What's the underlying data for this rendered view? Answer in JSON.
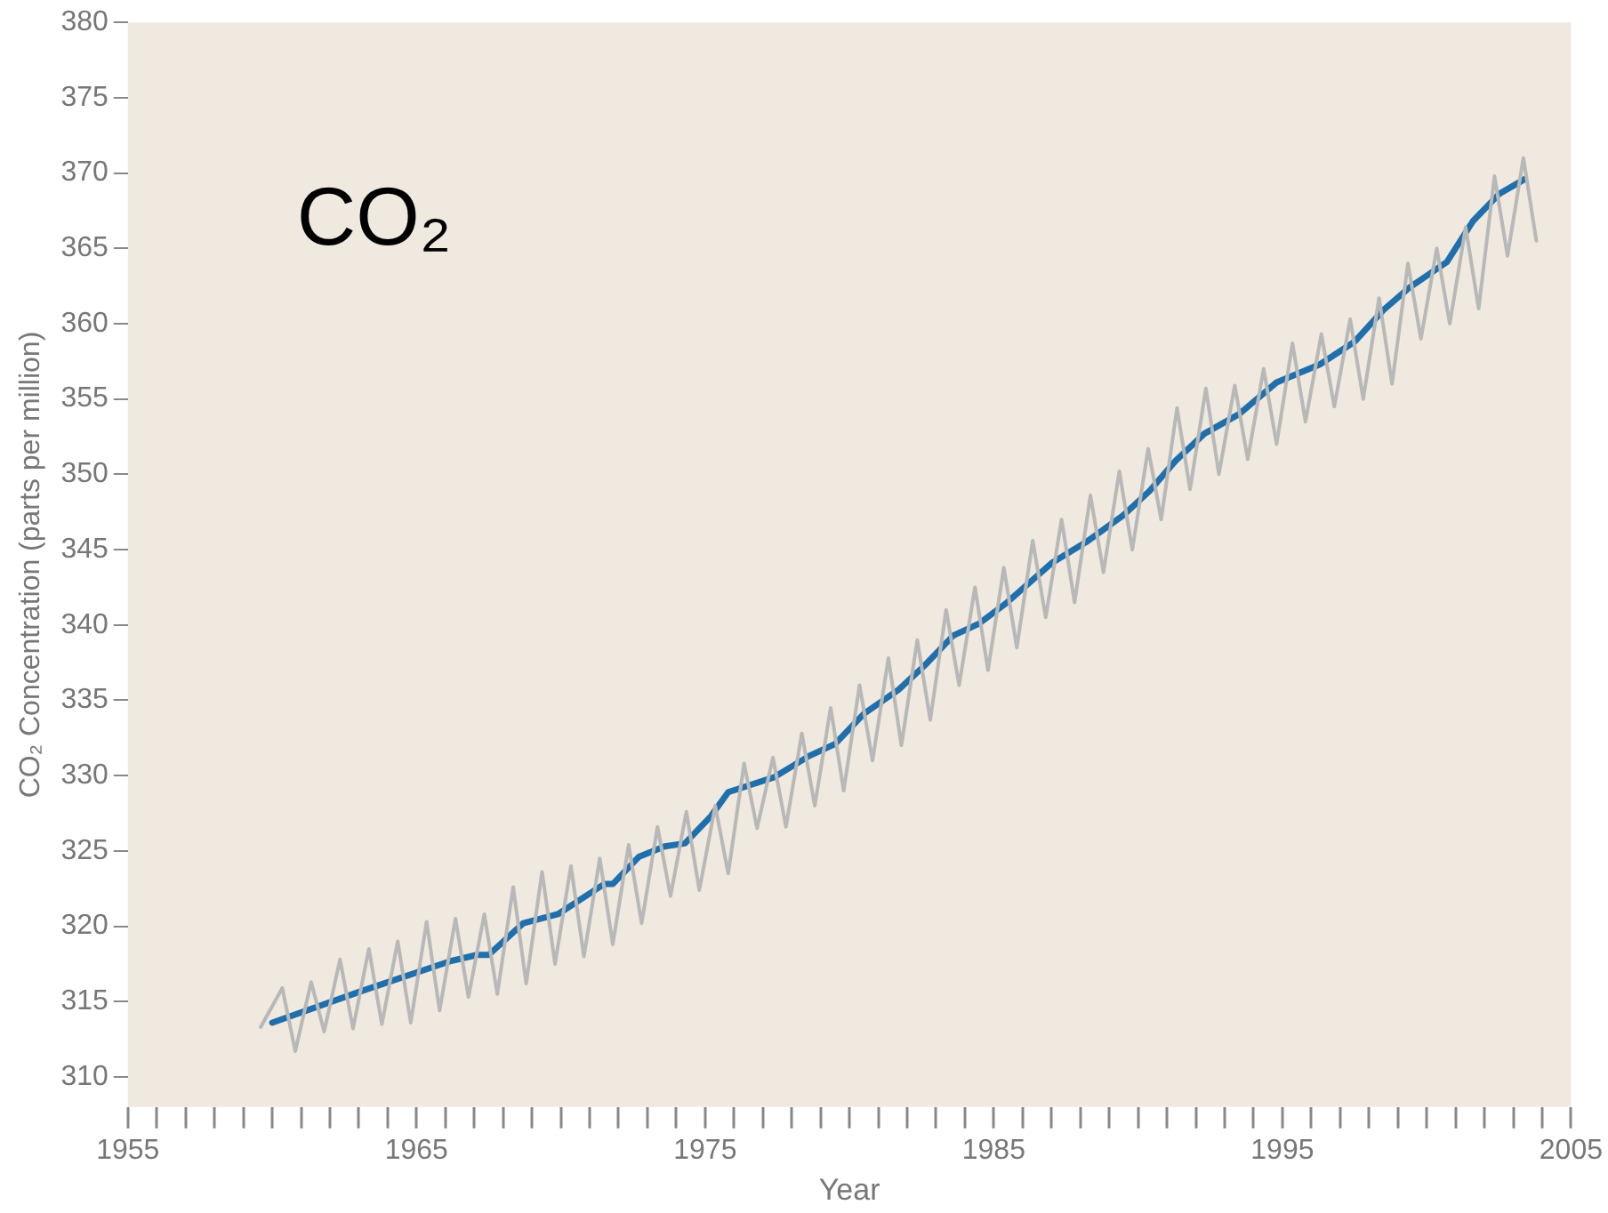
{
  "chart_data": {
    "type": "line",
    "xlabel": "Year",
    "ylabel": "CO₂ Concentration (parts per million)",
    "annotations": [
      "CO₂"
    ],
    "xlim": [
      1955,
      2005
    ],
    "ylim": [
      308,
      380
    ],
    "xticks": [
      {
        "value": 1955,
        "label": "1955"
      },
      {
        "value": 1956,
        "label": null
      },
      {
        "value": 1957,
        "label": null
      },
      {
        "value": 1958,
        "label": null
      },
      {
        "value": 1959,
        "label": null
      },
      {
        "value": 1960,
        "label": null
      },
      {
        "value": 1961,
        "label": null
      },
      {
        "value": 1962,
        "label": null
      },
      {
        "value": 1963,
        "label": null
      },
      {
        "value": 1964,
        "label": null
      },
      {
        "value": 1965,
        "label": "1965"
      },
      {
        "value": 1966,
        "label": null
      },
      {
        "value": 1967,
        "label": null
      },
      {
        "value": 1968,
        "label": null
      },
      {
        "value": 1969,
        "label": null
      },
      {
        "value": 1970,
        "label": null
      },
      {
        "value": 1971,
        "label": null
      },
      {
        "value": 1972,
        "label": null
      },
      {
        "value": 1973,
        "label": null
      },
      {
        "value": 1974,
        "label": null
      },
      {
        "value": 1975,
        "label": "1975"
      },
      {
        "value": 1976,
        "label": null
      },
      {
        "value": 1977,
        "label": null
      },
      {
        "value": 1978,
        "label": null
      },
      {
        "value": 1979,
        "label": null
      },
      {
        "value": 1980,
        "label": null
      },
      {
        "value": 1981,
        "label": null
      },
      {
        "value": 1982,
        "label": null
      },
      {
        "value": 1983,
        "label": null
      },
      {
        "value": 1984,
        "label": null
      },
      {
        "value": 1985,
        "label": "1985"
      },
      {
        "value": 1986,
        "label": null
      },
      {
        "value": 1987,
        "label": null
      },
      {
        "value": 1988,
        "label": null
      },
      {
        "value": 1989,
        "label": null
      },
      {
        "value": 1990,
        "label": null
      },
      {
        "value": 1991,
        "label": null
      },
      {
        "value": 1992,
        "label": null
      },
      {
        "value": 1993,
        "label": null
      },
      {
        "value": 1994,
        "label": null
      },
      {
        "value": 1995,
        "label": "1995"
      },
      {
        "value": 1996,
        "label": null
      },
      {
        "value": 1997,
        "label": null
      },
      {
        "value": 1998,
        "label": null
      },
      {
        "value": 1999,
        "label": null
      },
      {
        "value": 2000,
        "label": null
      },
      {
        "value": 2001,
        "label": null
      },
      {
        "value": 2002,
        "label": null
      },
      {
        "value": 2003,
        "label": null
      },
      {
        "value": 2004,
        "label": null
      },
      {
        "value": 2005,
        "label": "2005"
      }
    ],
    "yticks": [
      310,
      315,
      320,
      325,
      330,
      335,
      340,
      345,
      350,
      355,
      360,
      365,
      370,
      375,
      380
    ],
    "grid": false,
    "legend": false,
    "marker": "none",
    "line_style": "solid",
    "series": [
      {
        "color": "#b8b8b8",
        "x": [
          1959.6,
          1960.35,
          1960.8,
          1961.35,
          1961.8,
          1962.35,
          1962.8,
          1963.35,
          1963.8,
          1964.35,
          1964.8,
          1965.35,
          1965.8,
          1966.35,
          1966.8,
          1967.35,
          1967.8,
          1968.35,
          1968.8,
          1969.35,
          1969.8,
          1970.35,
          1970.8,
          1971.35,
          1971.8,
          1972.35,
          1972.8,
          1973.35,
          1973.8,
          1974.35,
          1974.8,
          1975.35,
          1975.8,
          1976.35,
          1976.8,
          1977.35,
          1977.8,
          1978.35,
          1978.8,
          1979.35,
          1979.8,
          1980.35,
          1980.8,
          1981.35,
          1981.8,
          1982.35,
          1982.8,
          1983.35,
          1983.8,
          1984.35,
          1984.8,
          1985.35,
          1985.8,
          1986.35,
          1986.8,
          1987.35,
          1987.8,
          1988.35,
          1988.8,
          1989.35,
          1989.8,
          1990.35,
          1990.8,
          1991.35,
          1991.8,
          1992.35,
          1992.8,
          1993.35,
          1993.8,
          1994.35,
          1994.8,
          1995.35,
          1995.8,
          1996.35,
          1996.8,
          1997.35,
          1997.8,
          1998.35,
          1998.8,
          1999.35,
          1999.8,
          2000.35,
          2000.8,
          2001.35,
          2001.8,
          2002.35,
          2002.8,
          2003.35,
          2003.8
        ],
        "values": [
          313.3,
          315.9,
          311.7,
          316.3,
          313.0,
          317.8,
          313.2,
          318.5,
          313.5,
          319.0,
          313.6,
          320.3,
          314.4,
          320.5,
          315.3,
          320.8,
          315.5,
          322.6,
          316.2,
          323.6,
          317.5,
          324.0,
          318.0,
          324.5,
          318.8,
          325.4,
          320.2,
          326.6,
          322.0,
          327.6,
          322.4,
          328.0,
          323.5,
          330.8,
          326.5,
          331.2,
          326.6,
          332.8,
          328.0,
          334.5,
          329.0,
          336.0,
          331.0,
          337.8,
          332.0,
          339.0,
          333.7,
          341.0,
          336.0,
          342.5,
          337.0,
          343.8,
          338.5,
          345.6,
          340.5,
          347.0,
          341.5,
          348.6,
          343.5,
          350.2,
          345.0,
          351.7,
          347.0,
          354.4,
          349.0,
          355.7,
          350.0,
          355.9,
          351.0,
          357.0,
          352.0,
          358.7,
          353.5,
          359.3,
          354.5,
          360.3,
          355.0,
          361.7,
          356.0,
          364.0,
          359.0,
          365.0,
          360.0,
          366.4,
          361.0,
          369.8,
          364.5,
          371.0,
          365.5
        ]
      },
      {
        "color": "#1f6fad",
        "x": [
          1960.0,
          1963.1,
          1966.2,
          1967.1,
          1967.5,
          1968.7,
          1969.9,
          1971.5,
          1971.8,
          1972.7,
          1973.6,
          1974.3,
          1975.2,
          1975.8,
          1977.4,
          1978.6,
          1979.5,
          1980.5,
          1981.7,
          1982.6,
          1983.6,
          1984.5,
          1985.4,
          1987.0,
          1988.2,
          1989.5,
          1990.4,
          1991.3,
          1992.3,
          1993.5,
          1994.8,
          1996.3,
          1997.5,
          1998.5,
          1999.4,
          2000.7,
          2001.6,
          2002.5,
          2003.4
        ],
        "values": [
          313.6,
          315.7,
          317.7,
          318.1,
          318.1,
          320.2,
          320.8,
          322.8,
          322.8,
          324.6,
          325.3,
          325.5,
          327.3,
          328.9,
          329.9,
          331.3,
          332.1,
          334.1,
          335.7,
          337.3,
          339.3,
          340.1,
          341.4,
          344.1,
          345.5,
          347.3,
          348.9,
          350.9,
          352.7,
          354.0,
          356.1,
          357.3,
          358.8,
          360.9,
          362.4,
          364.1,
          366.8,
          368.6,
          369.6
        ]
      }
    ]
  }
}
